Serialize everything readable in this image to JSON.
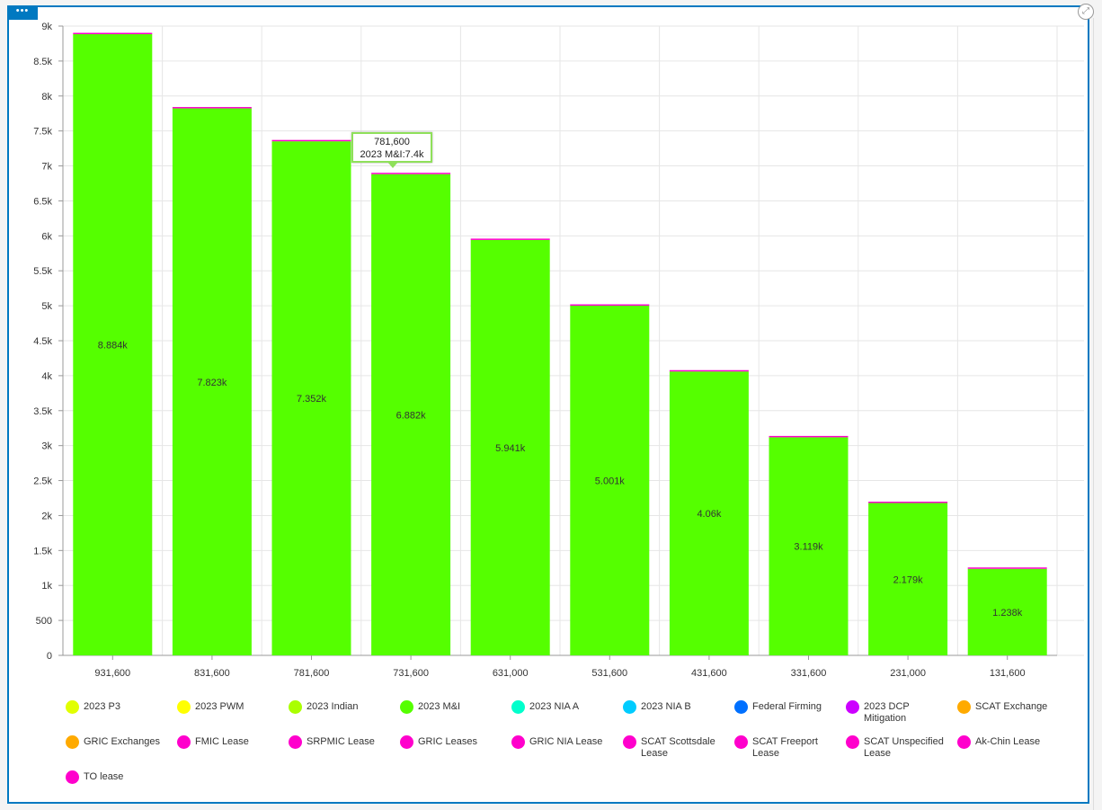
{
  "chart_data": {
    "type": "bar",
    "stacked": true,
    "title": "",
    "xlabel": "",
    "ylabel": "",
    "ylim": [
      0,
      9000
    ],
    "yticks": [
      "0",
      "500",
      "1k",
      "1.5k",
      "2k",
      "2.5k",
      "3k",
      "3.5k",
      "4k",
      "4.5k",
      "5k",
      "5.5k",
      "6k",
      "6.5k",
      "7k",
      "7.5k",
      "8k",
      "8.5k",
      "9k"
    ],
    "grid": true,
    "categories": [
      "931,600",
      "831,600",
      "781,600",
      "731,600",
      "631,000",
      "531,600",
      "431,600",
      "331,600",
      "231,000",
      "131,600"
    ],
    "series": [
      {
        "name": "2023 M&I",
        "color": "#55ff00",
        "values": [
          8884,
          7823,
          7352,
          6882,
          5941,
          5001,
          4060,
          3119,
          2179,
          1238
        ]
      }
    ],
    "data_labels": [
      "8.884k",
      "7.823k",
      "7.352k",
      "6.882k",
      "5.941k",
      "5.001k",
      "4.06k",
      "3.119k",
      "2.179k",
      "1.238k"
    ],
    "top_sliver_color": "#ff00cc",
    "legend_placement": "bottom",
    "legend": [
      {
        "label": "2023 P3",
        "color": "#e1ff00"
      },
      {
        "label": "2023 PWM",
        "color": "#ffff00"
      },
      {
        "label": "2023 Indian",
        "color": "#aaff00"
      },
      {
        "label": "2023 M&I",
        "color": "#55ff00"
      },
      {
        "label": "2023 NIA A",
        "color": "#00ffcc"
      },
      {
        "label": "2023 NIA B",
        "color": "#00ccff"
      },
      {
        "label": "Federal Firming",
        "color": "#0070ff"
      },
      {
        "label": "2023 DCP Mitigation",
        "color": "#cc00ff"
      },
      {
        "label": "SCAT Exchange",
        "color": "#ffaa00"
      },
      {
        "label": "GRIC Exchanges",
        "color": "#ffaa00"
      },
      {
        "label": "FMIC Lease",
        "color": "#ff00cc"
      },
      {
        "label": "SRPMIC Lease",
        "color": "#ff00cc"
      },
      {
        "label": "GRIC Leases",
        "color": "#ff00cc"
      },
      {
        "label": "GRIC NIA Lease",
        "color": "#ff00cc"
      },
      {
        "label": "SCAT Scottsdale Lease",
        "color": "#ff00cc"
      },
      {
        "label": "SCAT Freeport Lease",
        "color": "#ff00cc"
      },
      {
        "label": "SCAT Unspecified Lease",
        "color": "#ff00cc"
      },
      {
        "label": "Ak-Chin Lease",
        "color": "#ff00cc"
      },
      {
        "label": "TO lease",
        "color": "#ff00cc"
      }
    ],
    "tooltip": {
      "title": "781,600",
      "text": "2023 M&I:7.4k"
    }
  },
  "ui": {
    "menu_icon": "•••",
    "expand_icon": "⤢"
  }
}
